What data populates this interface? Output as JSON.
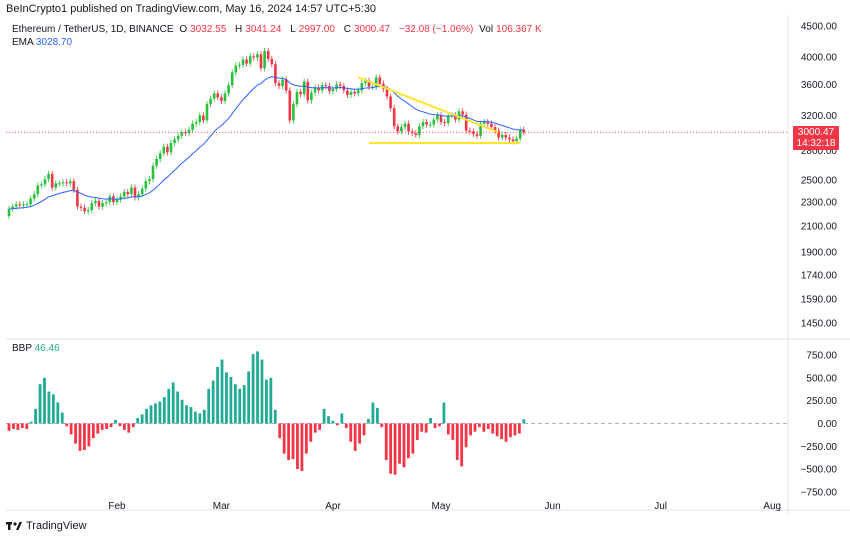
{
  "header": {
    "publish_line": "BeInCrypto1 published on TradingView.com, May 16, 2024 14:57 UTC+5:30"
  },
  "legend": {
    "symbol": "Ethereum / TetherUS, 1D, BINANCE",
    "o_label": "O",
    "o_value": "3032.55",
    "h_label": "H",
    "h_value": "3041.24",
    "l_label": "L",
    "l_value": "2997.00",
    "c_label": "C",
    "c_value": "3000.47",
    "change": "−32.08 (−1.06%)",
    "vol_label": "Vol",
    "vol_value": "106.367 K",
    "ema_label": "EMA",
    "ema_value": "3028.70",
    "bbp_label": "BBP",
    "bbp_value": "46.46"
  },
  "price_badge": {
    "price": "3000.47",
    "countdown": "14:32:18"
  },
  "footer": {
    "brand": "TradingView"
  },
  "colors": {
    "up": "#22ab94",
    "down": "#f23645",
    "candle_up": "#26c23b",
    "candle_down": "#f23645",
    "ema": "#2962ff",
    "triangle": "#ffe52e",
    "bbp_pos": "#22ab94",
    "bbp_neg": "#f23645"
  },
  "chart_data": [
    {
      "type": "candlestick",
      "title": "Ethereum / TetherUS, 1D, BINANCE",
      "x_ticks": [
        "Feb",
        "Mar",
        "Apr",
        "May",
        "Jun",
        "Jul",
        "Aug"
      ],
      "y_ticks": [
        "4500.00",
        "4000.00",
        "3600.00",
        "3200.00",
        "2800.00",
        "2500.00",
        "2300.00",
        "2100.00",
        "1900.00",
        "1740.00",
        "1590.00",
        "1450.00"
      ],
      "scale": "log",
      "grid": false,
      "close": [
        2240,
        2260,
        2280,
        2270,
        2280,
        2280,
        2330,
        2370,
        2450,
        2460,
        2510,
        2560,
        2430,
        2470,
        2470,
        2480,
        2470,
        2490,
        2410,
        2260,
        2250,
        2220,
        2230,
        2290,
        2310,
        2260,
        2290,
        2300,
        2350,
        2300,
        2320,
        2350,
        2390,
        2370,
        2430,
        2340,
        2370,
        2420,
        2490,
        2510,
        2640,
        2710,
        2770,
        2840,
        2780,
        2880,
        2920,
        2960,
        3000,
        2990,
        3030,
        3100,
        3120,
        3200,
        3140,
        3340,
        3410,
        3480,
        3430,
        3380,
        3480,
        3590,
        3770,
        3870,
        3880,
        3960,
        3900,
        4010,
        3990,
        4040,
        3830,
        4090,
        3970,
        3890,
        3620,
        3580,
        3670,
        3520,
        3140,
        3340,
        3500,
        3470,
        3640,
        3390,
        3490,
        3560,
        3520,
        3590,
        3580,
        3510,
        3540,
        3600,
        3580,
        3520,
        3460,
        3500,
        3480,
        3520,
        3620,
        3650,
        3570,
        3570,
        3700,
        3610,
        3540,
        3440,
        3290,
        3070,
        3010,
        3060,
        3100,
        3010,
        2990,
        2970,
        3070,
        3120,
        3090,
        3090,
        3150,
        3200,
        3120,
        3110,
        3200,
        3200,
        3150,
        3250,
        3210,
        3020,
        3010,
        2980,
        2960,
        3100,
        3120,
        3100,
        3060,
        3020,
        2940,
        2970,
        2940,
        2920,
        2900,
        2930,
        3030,
        3000
      ],
      "ema_last": 3028.7,
      "last_price": 3000.47
    },
    {
      "type": "bar",
      "title": "BBP",
      "y_ticks": [
        "750.00",
        "500.00",
        "250.00",
        "0.00",
        "−250.00",
        "−500.00",
        "−750.00"
      ],
      "ylim": [
        -750,
        750
      ],
      "values": [
        -80,
        -60,
        -70,
        -50,
        -60,
        20,
        160,
        430,
        500,
        350,
        320,
        230,
        120,
        -30,
        -120,
        -220,
        -300,
        -290,
        -250,
        -160,
        -110,
        -70,
        -60,
        -40,
        40,
        -30,
        -70,
        -100,
        -40,
        60,
        100,
        160,
        200,
        220,
        240,
        290,
        380,
        450,
        350,
        260,
        200,
        180,
        130,
        110,
        150,
        380,
        470,
        620,
        700,
        560,
        510,
        430,
        380,
        420,
        570,
        760,
        790,
        700,
        480,
        500,
        150,
        -160,
        -330,
        -400,
        -390,
        -500,
        -520,
        -330,
        -200,
        -100,
        -70,
        160,
        80,
        30,
        -20,
        110,
        -50,
        -200,
        -300,
        -220,
        -130,
        50,
        230,
        170,
        -40,
        -400,
        -550,
        -560,
        -440,
        -480,
        -380,
        -330,
        -180,
        -90,
        -100,
        60,
        -50,
        -30,
        230,
        -120,
        -180,
        -400,
        -470,
        -260,
        -130,
        -90,
        -40,
        -90,
        -60,
        -110,
        -140,
        -170,
        -200,
        -150,
        -130,
        -110,
        46
      ]
    }
  ]
}
